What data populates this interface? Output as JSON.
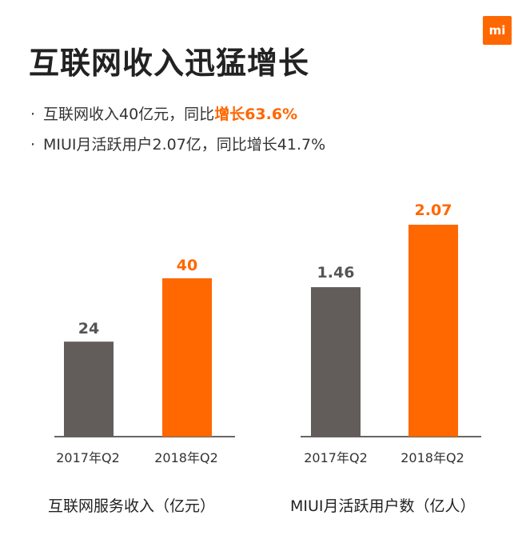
{
  "logo": {
    "text": "mi"
  },
  "title": "互联网收入迅猛增长",
  "bullets": [
    {
      "text_before": "互联网收入40亿元，同比",
      "highlight": "增长63.6%"
    },
    {
      "text": "MIUI月活跃用户2.07亿，同比增长41.7%"
    }
  ],
  "colors": {
    "accent": "#ff6700",
    "gray_bar": "#625c5b",
    "axis": "#333333"
  },
  "chart_data": [
    {
      "type": "bar",
      "title": "互联网服务收入（亿元）",
      "categories": [
        "2017年Q2",
        "2018年Q2"
      ],
      "values": [
        24,
        40
      ],
      "value_labels": [
        "24",
        "40"
      ],
      "ylim": [
        0,
        40
      ]
    },
    {
      "type": "bar",
      "title": "MIUI月活跃用户数（亿人）",
      "categories": [
        "2017年Q2",
        "2018年Q2"
      ],
      "values": [
        1.46,
        2.07
      ],
      "value_labels": [
        "1.46",
        "2.07"
      ],
      "ylim": [
        0,
        2.07
      ]
    }
  ]
}
